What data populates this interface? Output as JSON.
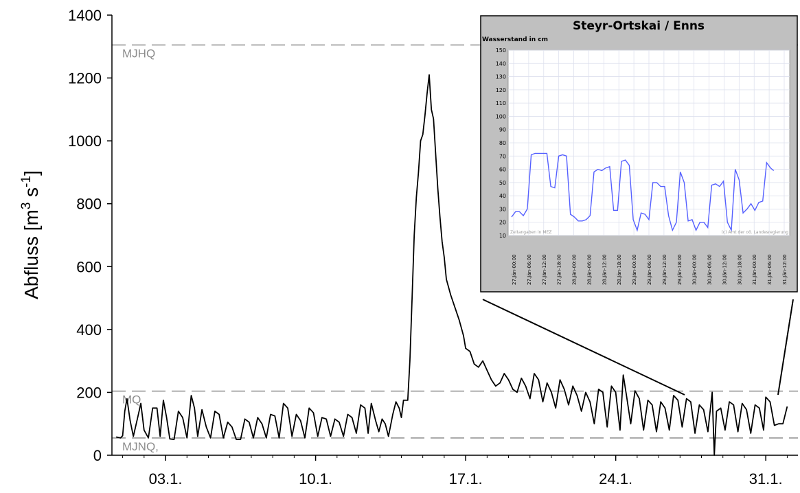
{
  "chart_data": [
    {
      "type": "line",
      "title": "",
      "xlabel": "",
      "ylabel": "Abfluss [m^3 s^-1]",
      "ylabel_main": "Abfluss [m",
      "ylabel_sup1": "3",
      "ylabel_mid": " s",
      "ylabel_sup2": "-1",
      "ylabel_end": "]",
      "ylim": [
        0,
        1400
      ],
      "xlim": [
        0.5,
        32.5
      ],
      "yticks": [
        0,
        200,
        400,
        600,
        800,
        1000,
        1200,
        1400
      ],
      "xticks": [
        {
          "x": 3,
          "label": "03.1."
        },
        {
          "x": 10,
          "label": "10.1."
        },
        {
          "x": 17,
          "label": "17.1."
        },
        {
          "x": 24,
          "label": "24.1."
        },
        {
          "x": 31,
          "label": "31.1."
        }
      ],
      "reference_lines": [
        {
          "name": "MJHQ",
          "value": 1305
        },
        {
          "name": "MQ",
          "value": 204
        },
        {
          "name": "MJNQ,",
          "value": 55
        }
      ],
      "series": [
        {
          "name": "",
          "color": "#000000",
          "points": [
            [
              0.7,
              58
            ],
            [
              0.9,
              55
            ],
            [
              1.0,
              62
            ],
            [
              1.1,
              140
            ],
            [
              1.2,
              180
            ],
            [
              1.35,
              110
            ],
            [
              1.5,
              60
            ],
            [
              1.7,
              120
            ],
            [
              1.85,
              165
            ],
            [
              2.0,
              80
            ],
            [
              2.2,
              55
            ],
            [
              2.4,
              150
            ],
            [
              2.6,
              150
            ],
            [
              2.75,
              60
            ],
            [
              2.9,
              175
            ],
            [
              3.05,
              120
            ],
            [
              3.2,
              52
            ],
            [
              3.4,
              50
            ],
            [
              3.6,
              140
            ],
            [
              3.8,
              120
            ],
            [
              4.0,
              55
            ],
            [
              4.2,
              190
            ],
            [
              4.35,
              150
            ],
            [
              4.5,
              60
            ],
            [
              4.7,
              145
            ],
            [
              4.9,
              90
            ],
            [
              5.1,
              55
            ],
            [
              5.3,
              140
            ],
            [
              5.5,
              130
            ],
            [
              5.7,
              55
            ],
            [
              5.9,
              105
            ],
            [
              6.1,
              90
            ],
            [
              6.3,
              50
            ],
            [
              6.5,
              50
            ],
            [
              6.7,
              115
            ],
            [
              6.9,
              105
            ],
            [
              7.1,
              55
            ],
            [
              7.3,
              120
            ],
            [
              7.5,
              100
            ],
            [
              7.7,
              55
            ],
            [
              7.9,
              130
            ],
            [
              8.1,
              125
            ],
            [
              8.3,
              55
            ],
            [
              8.5,
              165
            ],
            [
              8.7,
              150
            ],
            [
              8.9,
              60
            ],
            [
              9.1,
              130
            ],
            [
              9.3,
              110
            ],
            [
              9.5,
              55
            ],
            [
              9.7,
              150
            ],
            [
              9.9,
              135
            ],
            [
              10.1,
              60
            ],
            [
              10.3,
              120
            ],
            [
              10.5,
              115
            ],
            [
              10.7,
              60
            ],
            [
              10.9,
              115
            ],
            [
              11.1,
              105
            ],
            [
              11.3,
              60
            ],
            [
              11.5,
              130
            ],
            [
              11.7,
              120
            ],
            [
              11.9,
              70
            ],
            [
              12.1,
              160
            ],
            [
              12.3,
              150
            ],
            [
              12.45,
              70
            ],
            [
              12.6,
              165
            ],
            [
              12.8,
              110
            ],
            [
              12.95,
              75
            ],
            [
              13.1,
              115
            ],
            [
              13.25,
              100
            ],
            [
              13.4,
              60
            ],
            [
              13.6,
              130
            ],
            [
              13.75,
              170
            ],
            [
              13.9,
              150
            ],
            [
              14.0,
              120
            ],
            [
              14.1,
              175
            ],
            [
              14.3,
              175
            ],
            [
              14.4,
              300
            ],
            [
              14.5,
              500
            ],
            [
              14.6,
              700
            ],
            [
              14.7,
              820
            ],
            [
              14.8,
              900
            ],
            [
              14.9,
              1000
            ],
            [
              15.0,
              1020
            ],
            [
              15.1,
              1080
            ],
            [
              15.2,
              1150
            ],
            [
              15.3,
              1210
            ],
            [
              15.4,
              1100
            ],
            [
              15.5,
              1070
            ],
            [
              15.6,
              960
            ],
            [
              15.7,
              850
            ],
            [
              15.8,
              760
            ],
            [
              15.9,
              680
            ],
            [
              16.0,
              630
            ],
            [
              16.1,
              560
            ],
            [
              16.3,
              510
            ],
            [
              16.5,
              470
            ],
            [
              16.7,
              430
            ],
            [
              16.9,
              380
            ],
            [
              17.0,
              340
            ],
            [
              17.2,
              330
            ],
            [
              17.4,
              290
            ],
            [
              17.6,
              280
            ],
            [
              17.8,
              300
            ],
            [
              18.0,
              270
            ],
            [
              18.2,
              240
            ],
            [
              18.4,
              220
            ],
            [
              18.6,
              230
            ],
            [
              18.8,
              260
            ],
            [
              19.0,
              240
            ],
            [
              19.2,
              210
            ],
            [
              19.4,
              200
            ],
            [
              19.6,
              245
            ],
            [
              19.8,
              220
            ],
            [
              20.0,
              180
            ],
            [
              20.2,
              260
            ],
            [
              20.4,
              240
            ],
            [
              20.6,
              170
            ],
            [
              20.8,
              230
            ],
            [
              21.0,
              200
            ],
            [
              21.2,
              150
            ],
            [
              21.4,
              240
            ],
            [
              21.6,
              210
            ],
            [
              21.8,
              160
            ],
            [
              22.0,
              220
            ],
            [
              22.2,
              190
            ],
            [
              22.4,
              140
            ],
            [
              22.6,
              200
            ],
            [
              22.8,
              170
            ],
            [
              23.0,
              100
            ],
            [
              23.2,
              210
            ],
            [
              23.4,
              200
            ],
            [
              23.6,
              90
            ],
            [
              23.8,
              220
            ],
            [
              24.0,
              200
            ],
            [
              24.2,
              80
            ],
            [
              24.35,
              255
            ],
            [
              24.5,
              190
            ],
            [
              24.7,
              100
            ],
            [
              24.9,
              205
            ],
            [
              25.1,
              180
            ],
            [
              25.3,
              80
            ],
            [
              25.5,
              175
            ],
            [
              25.7,
              160
            ],
            [
              25.9,
              75
            ],
            [
              26.1,
              170
            ],
            [
              26.3,
              150
            ],
            [
              26.5,
              80
            ],
            [
              26.7,
              190
            ],
            [
              26.9,
              175
            ],
            [
              27.1,
              90
            ],
            [
              27.3,
              180
            ],
            [
              27.5,
              170
            ],
            [
              27.7,
              70
            ],
            [
              27.9,
              160
            ],
            [
              28.1,
              145
            ],
            [
              28.3,
              75
            ],
            [
              28.5,
              200
            ],
            [
              28.6,
              0
            ],
            [
              28.7,
              140
            ],
            [
              28.9,
              150
            ],
            [
              29.1,
              80
            ],
            [
              29.3,
              170
            ],
            [
              29.5,
              160
            ],
            [
              29.7,
              75
            ],
            [
              29.9,
              165
            ],
            [
              30.1,
              145
            ],
            [
              30.3,
              70
            ],
            [
              30.5,
              160
            ],
            [
              30.7,
              150
            ],
            [
              30.9,
              80
            ],
            [
              31.0,
              185
            ],
            [
              31.2,
              170
            ],
            [
              31.4,
              95
            ],
            [
              31.6,
              100
            ],
            [
              31.8,
              100
            ],
            [
              32.0,
              155
            ]
          ]
        }
      ]
    },
    {
      "type": "line",
      "title": "Steyr-Ortskai / Enns",
      "ylabel": "Wasserstand in cm",
      "ylim": [
        10,
        150
      ],
      "yticks": [
        10,
        20,
        30,
        40,
        50,
        60,
        70,
        80,
        90,
        100,
        110,
        120,
        130,
        140,
        150
      ],
      "xticks": [
        "27.Jän-00:00",
        "27.Jän-06:00",
        "27.Jän-12:00",
        "27.Jän-18:00",
        "28.Jän-00:00",
        "28.Jän-06:00",
        "28.Jän-12:00",
        "28.Jän-18:00",
        "29.Jän-00:00",
        "29.Jän-06:00",
        "29.Jän-12:00",
        "29.Jän-18:00",
        "30.Jän-00:00",
        "30.Jän-06:00",
        "30.Jän-12:00",
        "30.Jän-18:00",
        "31.Jän-00:00",
        "31.Jän-06:00",
        "31.Jän-12:00"
      ],
      "note_left": "Zeitangaben in MEZ",
      "note_right": "(c) Amt der oö. Landesregierung",
      "series": [
        {
          "name": "",
          "color": "#5560ff",
          "points": [
            [
              0,
              24
            ],
            [
              1,
              28
            ],
            [
              2,
              28
            ],
            [
              3,
              25
            ],
            [
              4,
              30
            ],
            [
              5,
              71
            ],
            [
              6,
              72
            ],
            [
              7,
              72
            ],
            [
              8,
              72
            ],
            [
              9,
              72
            ],
            [
              10,
              47
            ],
            [
              11,
              46
            ],
            [
              12,
              70
            ],
            [
              13,
              71
            ],
            [
              14,
              70
            ],
            [
              15,
              26
            ],
            [
              16,
              24
            ],
            [
              17,
              21
            ],
            [
              18,
              21
            ],
            [
              19,
              22
            ],
            [
              20,
              25
            ],
            [
              21,
              58
            ],
            [
              22,
              60
            ],
            [
              23,
              59
            ],
            [
              24,
              61
            ],
            [
              25,
              62
            ],
            [
              26,
              29
            ],
            [
              27,
              29
            ],
            [
              28,
              66
            ],
            [
              29,
              67
            ],
            [
              30,
              63
            ],
            [
              31,
              22
            ],
            [
              32,
              14
            ],
            [
              33,
              27
            ],
            [
              34,
              26
            ],
            [
              35,
              22
            ],
            [
              36,
              50
            ],
            [
              37,
              50
            ],
            [
              38,
              47
            ],
            [
              39,
              47
            ],
            [
              40,
              25
            ],
            [
              41,
              14
            ],
            [
              42,
              20
            ],
            [
              43,
              58
            ],
            [
              44,
              50
            ],
            [
              45,
              21
            ],
            [
              46,
              22
            ],
            [
              47,
              14
            ],
            [
              48,
              20
            ],
            [
              49,
              20
            ],
            [
              50,
              16
            ],
            [
              51,
              48
            ],
            [
              52,
              49
            ],
            [
              53,
              47
            ],
            [
              54,
              51
            ],
            [
              55,
              20
            ],
            [
              56,
              14
            ],
            [
              57,
              60
            ],
            [
              58,
              52
            ],
            [
              59,
              27
            ],
            [
              60,
              30
            ],
            [
              61,
              34
            ],
            [
              62,
              29
            ],
            [
              63,
              35
            ],
            [
              64,
              36
            ],
            [
              65,
              65
            ],
            [
              66,
              61
            ],
            [
              66.8,
              59
            ]
          ],
          "xmax": 70
        }
      ]
    }
  ]
}
